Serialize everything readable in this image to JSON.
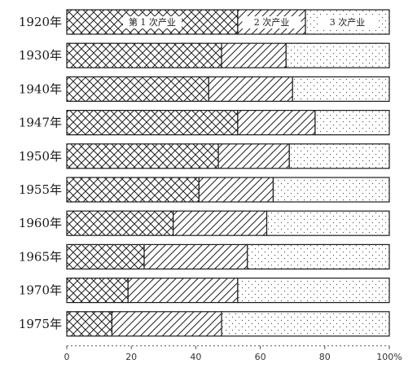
{
  "chart_data": {
    "type": "bar",
    "orientation": "horizontal",
    "stacked": true,
    "categories": [
      "1920年",
      "1930年",
      "1940年",
      "1947年",
      "1950年",
      "1955年",
      "1960年",
      "1965年",
      "1970年",
      "1975年"
    ],
    "series": [
      {
        "name": "第1次産業",
        "label": "第 1 次产业",
        "pattern": "crosshatch",
        "values": [
          53,
          48,
          44,
          53,
          47,
          41,
          33,
          24,
          19,
          14
        ]
      },
      {
        "name": "第2次産業",
        "label": "2 次产业",
        "pattern": "diagonal",
        "values": [
          21,
          20,
          26,
          24,
          22,
          23,
          29,
          32,
          34,
          34
        ]
      },
      {
        "name": "第3次産業",
        "label": "3 次产业",
        "pattern": "dots",
        "values": [
          26,
          32,
          30,
          23,
          31,
          36,
          38,
          44,
          47,
          52
        ]
      }
    ],
    "xticks": [
      "0",
      "20",
      "40",
      "60",
      "80",
      "100%"
    ],
    "xlim": [
      0,
      100
    ],
    "title": "",
    "xlabel": "",
    "ylabel": "",
    "grid": false,
    "legend": "inside-first-bar"
  }
}
